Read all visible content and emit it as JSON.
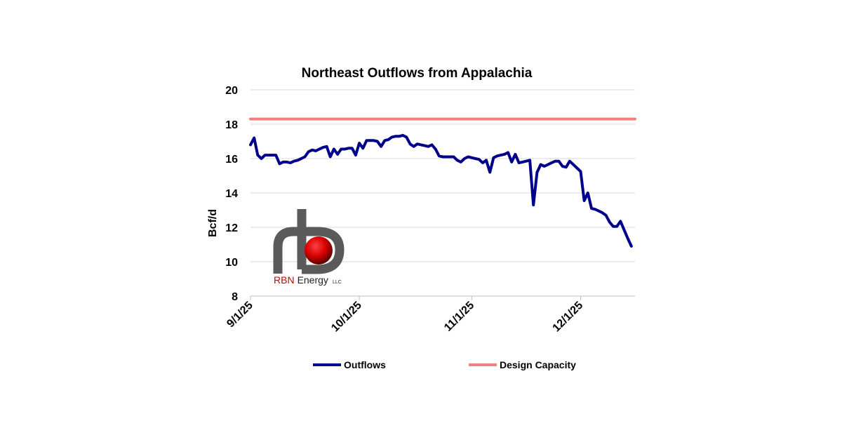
{
  "chart_data": {
    "type": "line",
    "title": "Northeast Outflows from Appalachia",
    "ylabel": "Bcf/d",
    "xlabel": "",
    "ylim": [
      8,
      20
    ],
    "yticks": [
      8,
      10,
      12,
      14,
      16,
      18,
      20
    ],
    "xlim": [
      "2025-09-01",
      "2025-12-16"
    ],
    "xticks": [
      {
        "date": "2025-09-01",
        "label": "9/1/25"
      },
      {
        "date": "2025-10-01",
        "label": "10/1/25"
      },
      {
        "date": "2025-11-01",
        "label": "11/1/25"
      },
      {
        "date": "2025-12-01",
        "label": "12/1/25"
      }
    ],
    "grid": true,
    "legend_position": "bottom",
    "series": [
      {
        "name": "Outflows",
        "color": "#00008B",
        "points": [
          [
            "2025-09-01",
            16.8
          ],
          [
            "2025-09-02",
            17.2
          ],
          [
            "2025-09-03",
            16.2
          ],
          [
            "2025-09-04",
            16.0
          ],
          [
            "2025-09-05",
            16.2
          ],
          [
            "2025-09-06",
            16.2
          ],
          [
            "2025-09-07",
            16.2
          ],
          [
            "2025-09-08",
            16.2
          ],
          [
            "2025-09-09",
            15.7
          ],
          [
            "2025-09-10",
            15.8
          ],
          [
            "2025-09-11",
            15.8
          ],
          [
            "2025-09-12",
            15.75
          ],
          [
            "2025-09-13",
            15.85
          ],
          [
            "2025-09-14",
            15.9
          ],
          [
            "2025-09-15",
            16.0
          ],
          [
            "2025-09-16",
            16.1
          ],
          [
            "2025-09-17",
            16.4
          ],
          [
            "2025-09-18",
            16.5
          ],
          [
            "2025-09-19",
            16.45
          ],
          [
            "2025-09-20",
            16.55
          ],
          [
            "2025-09-21",
            16.65
          ],
          [
            "2025-09-22",
            16.7
          ],
          [
            "2025-09-23",
            16.1
          ],
          [
            "2025-09-24",
            16.55
          ],
          [
            "2025-09-25",
            16.25
          ],
          [
            "2025-09-26",
            16.55
          ],
          [
            "2025-09-27",
            16.55
          ],
          [
            "2025-09-28",
            16.6
          ],
          [
            "2025-09-29",
            16.6
          ],
          [
            "2025-09-30",
            16.2
          ],
          [
            "2025-10-01",
            16.9
          ],
          [
            "2025-10-02",
            16.6
          ],
          [
            "2025-10-03",
            17.05
          ],
          [
            "2025-10-04",
            17.05
          ],
          [
            "2025-10-05",
            17.05
          ],
          [
            "2025-10-06",
            17.0
          ],
          [
            "2025-10-07",
            16.7
          ],
          [
            "2025-10-08",
            17.05
          ],
          [
            "2025-10-09",
            17.1
          ],
          [
            "2025-10-10",
            17.25
          ],
          [
            "2025-10-11",
            17.3
          ],
          [
            "2025-10-12",
            17.3
          ],
          [
            "2025-10-13",
            17.35
          ],
          [
            "2025-10-14",
            17.25
          ],
          [
            "2025-10-15",
            16.85
          ],
          [
            "2025-10-16",
            16.7
          ],
          [
            "2025-10-17",
            16.85
          ],
          [
            "2025-10-18",
            16.8
          ],
          [
            "2025-10-19",
            16.75
          ],
          [
            "2025-10-20",
            16.7
          ],
          [
            "2025-10-21",
            16.8
          ],
          [
            "2025-10-22",
            16.55
          ],
          [
            "2025-10-23",
            16.15
          ],
          [
            "2025-10-24",
            16.1
          ],
          [
            "2025-10-25",
            16.1
          ],
          [
            "2025-10-26",
            16.1
          ],
          [
            "2025-10-27",
            16.1
          ],
          [
            "2025-10-28",
            15.9
          ],
          [
            "2025-10-29",
            15.8
          ],
          [
            "2025-10-30",
            16.0
          ],
          [
            "2025-10-31",
            16.1
          ],
          [
            "2025-11-01",
            16.05
          ],
          [
            "2025-11-02",
            16.0
          ],
          [
            "2025-11-03",
            15.95
          ],
          [
            "2025-11-04",
            15.75
          ],
          [
            "2025-11-05",
            15.9
          ],
          [
            "2025-11-06",
            15.2
          ],
          [
            "2025-11-07",
            16.05
          ],
          [
            "2025-11-08",
            16.15
          ],
          [
            "2025-11-09",
            16.2
          ],
          [
            "2025-11-10",
            16.25
          ],
          [
            "2025-11-11",
            16.35
          ],
          [
            "2025-11-12",
            15.8
          ],
          [
            "2025-11-13",
            16.25
          ],
          [
            "2025-11-14",
            15.75
          ],
          [
            "2025-11-15",
            15.8
          ],
          [
            "2025-11-16",
            15.85
          ],
          [
            "2025-11-17",
            15.9
          ],
          [
            "2025-11-18",
            13.3
          ],
          [
            "2025-11-19",
            15.2
          ],
          [
            "2025-11-20",
            15.65
          ],
          [
            "2025-11-21",
            15.55
          ],
          [
            "2025-11-22",
            15.65
          ],
          [
            "2025-11-23",
            15.75
          ],
          [
            "2025-11-24",
            15.85
          ],
          [
            "2025-11-25",
            15.85
          ],
          [
            "2025-11-26",
            15.55
          ],
          [
            "2025-11-27",
            15.5
          ],
          [
            "2025-11-28",
            15.85
          ],
          [
            "2025-11-29",
            15.65
          ],
          [
            "2025-11-30",
            15.45
          ],
          [
            "2025-12-01",
            15.25
          ],
          [
            "2025-12-02",
            13.55
          ],
          [
            "2025-12-03",
            14.0
          ],
          [
            "2025-12-04",
            13.1
          ],
          [
            "2025-12-05",
            13.05
          ],
          [
            "2025-12-06",
            12.95
          ],
          [
            "2025-12-07",
            12.85
          ],
          [
            "2025-12-08",
            12.7
          ],
          [
            "2025-12-09",
            12.3
          ],
          [
            "2025-12-10",
            12.05
          ],
          [
            "2025-12-11",
            12.05
          ],
          [
            "2025-12-12",
            12.35
          ],
          [
            "2025-12-13",
            11.85
          ],
          [
            "2025-12-14",
            11.35
          ],
          [
            "2025-12-15",
            10.9
          ]
        ]
      },
      {
        "name": "Design Capacity",
        "color": "#F08080",
        "points": [
          [
            "2025-09-01",
            18.3
          ],
          [
            "2025-12-16",
            18.3
          ]
        ]
      }
    ]
  },
  "logo": {
    "text": "RBN Energy",
    "suffix": "LLC"
  }
}
